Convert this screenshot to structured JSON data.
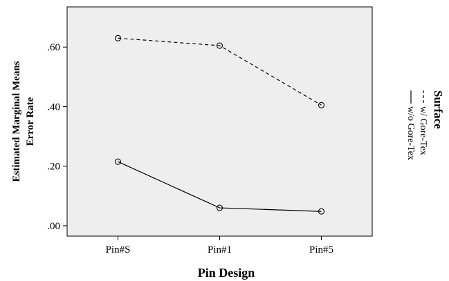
{
  "chart_data": {
    "type": "line",
    "categories": [
      "Pin#S",
      "Pin#1",
      "Pin#5"
    ],
    "series": [
      {
        "name": "w/ Gore-Tex",
        "values": [
          0.63,
          0.605,
          0.405
        ],
        "line_style": "dashed",
        "color": "#000000"
      },
      {
        "name": "w/o Gore-Tex",
        "values": [
          0.215,
          0.06,
          0.048
        ],
        "line_style": "solid",
        "color": "#000000"
      }
    ],
    "xlabel": "Pin Design",
    "ylabel_lines": [
      "Estimated Marginal Means",
      "Error Rate"
    ],
    "yticks": [
      0.0,
      0.2,
      0.4,
      0.6
    ],
    "ytick_labels": [
      ".00",
      ".20",
      ".40",
      ".60"
    ],
    "ylim": [
      -0.035,
      0.735
    ],
    "legend_title": "Surface",
    "legend_position": "right, rotated",
    "plot_background": "#eeeeee",
    "grid": false,
    "marker": "open-circle"
  }
}
